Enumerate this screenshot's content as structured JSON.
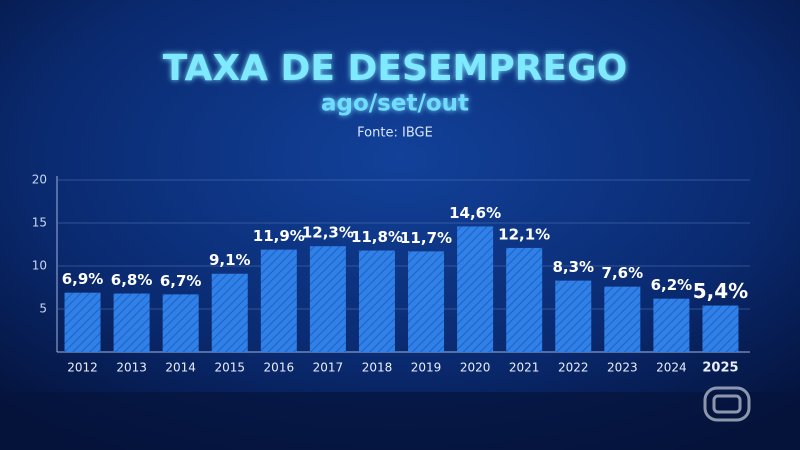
{
  "chart_data": {
    "type": "bar",
    "title": "TAXA DE DESEMPREGO",
    "subtitle": "ago/set/out",
    "source": "Fonte: IBGE",
    "categories": [
      "2012",
      "2013",
      "2014",
      "2015",
      "2016",
      "2017",
      "2018",
      "2019",
      "2020",
      "2021",
      "2022",
      "2023",
      "2024",
      "2025"
    ],
    "values": [
      6.9,
      6.8,
      6.7,
      9.1,
      11.9,
      12.3,
      11.8,
      11.7,
      14.6,
      12.1,
      8.3,
      7.6,
      6.2,
      5.4
    ],
    "value_labels": [
      "6,9%",
      "6,8%",
      "6,7%",
      "9,1%",
      "11,9%",
      "12,3%",
      "11,8%",
      "11,7%",
      "14,6%",
      "12,1%",
      "8,3%",
      "7,6%",
      "6,2%",
      "5,4%"
    ],
    "color": "#2f80e8",
    "ylim": [
      0,
      20
    ],
    "yticks": [
      5,
      10,
      15,
      20
    ],
    "grid": true
  }
}
